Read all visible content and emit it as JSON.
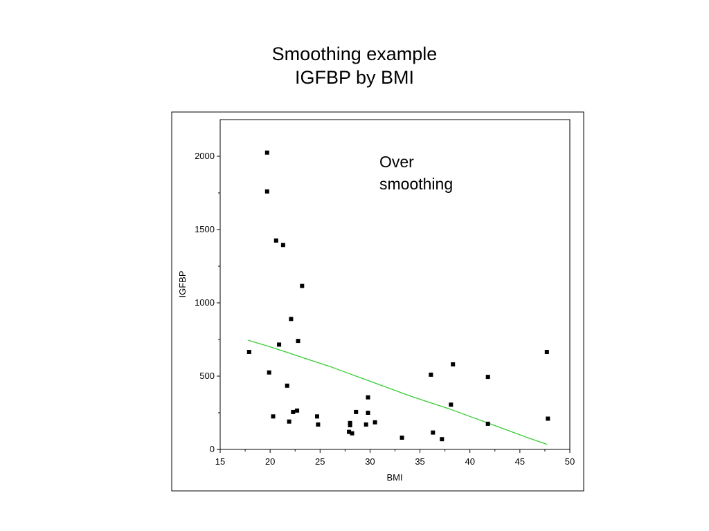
{
  "title_line1": "Smoothing example",
  "title_line2": "IGFBP by BMI",
  "chart_data": {
    "type": "scatter",
    "xlabel": "BMI",
    "ylabel": "IGFBP",
    "xlim": [
      15,
      50
    ],
    "ylim": [
      0,
      2250
    ],
    "xticks": [
      15,
      20,
      25,
      30,
      35,
      40,
      45,
      50
    ],
    "yticks": [
      0,
      500,
      1000,
      1500,
      2000
    ],
    "grid": false,
    "annotation": [
      "Over",
      "smoothing"
    ],
    "series": [
      {
        "type": "scatter",
        "color": "#000000",
        "points": [
          [
            17.9,
            665
          ],
          [
            19.7,
            2025
          ],
          [
            19.7,
            1760
          ],
          [
            19.9,
            525
          ],
          [
            20.3,
            225
          ],
          [
            20.6,
            1425
          ],
          [
            20.9,
            715
          ],
          [
            21.3,
            1395
          ],
          [
            21.7,
            435
          ],
          [
            21.9,
            190
          ],
          [
            22.1,
            890
          ],
          [
            22.3,
            255
          ],
          [
            22.7,
            265
          ],
          [
            22.8,
            740
          ],
          [
            23.2,
            1115
          ],
          [
            24.7,
            225
          ],
          [
            24.8,
            170
          ],
          [
            27.9,
            120
          ],
          [
            28.0,
            180
          ],
          [
            28.0,
            165
          ],
          [
            28.2,
            110
          ],
          [
            28.6,
            255
          ],
          [
            29.6,
            170
          ],
          [
            29.8,
            250
          ],
          [
            29.8,
            355
          ],
          [
            30.5,
            185
          ],
          [
            33.2,
            80
          ],
          [
            36.1,
            510
          ],
          [
            36.3,
            115
          ],
          [
            37.2,
            70
          ],
          [
            38.1,
            305
          ],
          [
            38.3,
            580
          ],
          [
            41.8,
            175
          ],
          [
            41.8,
            495
          ],
          [
            47.7,
            665
          ],
          [
            47.8,
            210
          ]
        ]
      },
      {
        "type": "line",
        "color": "#33cc33",
        "points": [
          [
            17.8,
            745
          ],
          [
            20.0,
            700
          ],
          [
            22.0,
            655
          ],
          [
            24.0,
            610
          ],
          [
            26.0,
            565
          ],
          [
            28.0,
            515
          ],
          [
            30.0,
            465
          ],
          [
            32.0,
            415
          ],
          [
            34.0,
            365
          ],
          [
            36.0,
            320
          ],
          [
            38.0,
            275
          ],
          [
            40.0,
            225
          ],
          [
            42.0,
            175
          ],
          [
            44.0,
            125
          ],
          [
            46.0,
            75
          ],
          [
            47.7,
            35
          ]
        ]
      }
    ]
  }
}
